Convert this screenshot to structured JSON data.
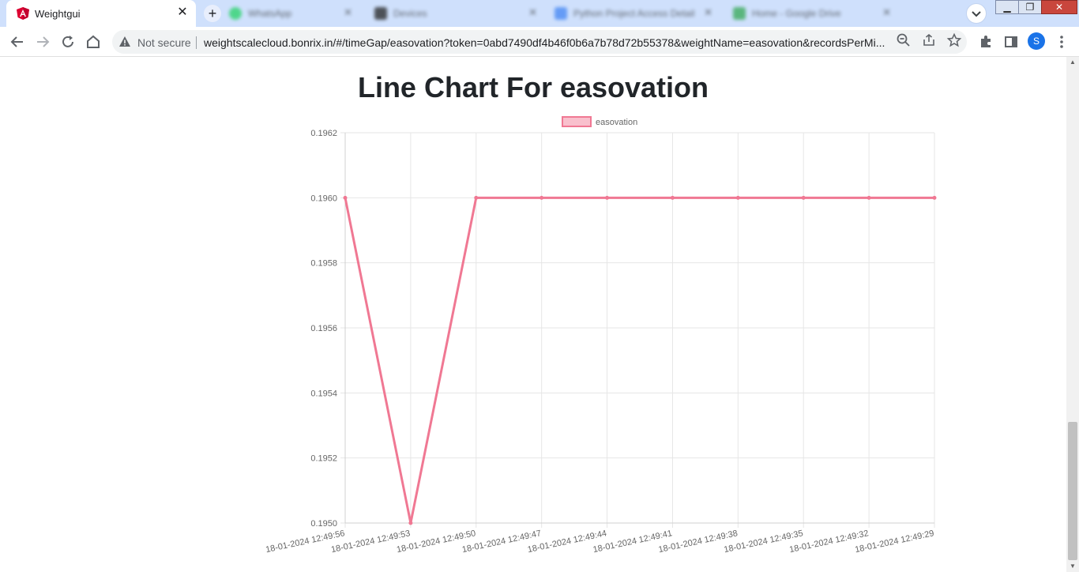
{
  "browser": {
    "active_tab": {
      "title": "Weightgui",
      "favicon": "angular-logo-icon"
    },
    "background_tabs": [
      {
        "label": "WhatsApp",
        "color": "#25d366"
      },
      {
        "label": "Devices",
        "color": "#222222"
      },
      {
        "label": "Python Project Access Detail",
        "color": "#4285f4"
      },
      {
        "label": "Home - Google Drive",
        "color": "#34a853"
      }
    ],
    "security_label": "Not secure",
    "url": "weightscalecloud.bonrix.in/#/timeGap/easovation?token=0abd7490df4b46f0b6a7b78d72b55378&weightName=easovation&recordsPerMi...",
    "profile_initial": "S"
  },
  "chart_data": {
    "type": "line",
    "title": "Line Chart For easovation",
    "legend_position": "top",
    "grid": true,
    "categories": [
      "18-01-2024 12:49:56",
      "18-01-2024 12:49:53",
      "18-01-2024 12:49:50",
      "18-01-2024 12:49:47",
      "18-01-2024 12:49:44",
      "18-01-2024 12:49:41",
      "18-01-2024 12:49:38",
      "18-01-2024 12:49:35",
      "18-01-2024 12:49:32",
      "18-01-2024 12:49:29"
    ],
    "series": [
      {
        "name": "easovation",
        "color": "#f07893",
        "values": [
          0.196,
          0.195,
          0.196,
          0.196,
          0.196,
          0.196,
          0.196,
          0.196,
          0.196,
          0.196
        ]
      }
    ],
    "ylim": [
      0.195,
      0.1962
    ],
    "yticks": [
      0.1962,
      0.196,
      0.1958,
      0.1956,
      0.1954,
      0.1952,
      0.195
    ],
    "ytick_labels": [
      "0.1962",
      "0.1960",
      "0.1958",
      "0.1956",
      "0.1954",
      "0.1952",
      "0.1950"
    ]
  }
}
